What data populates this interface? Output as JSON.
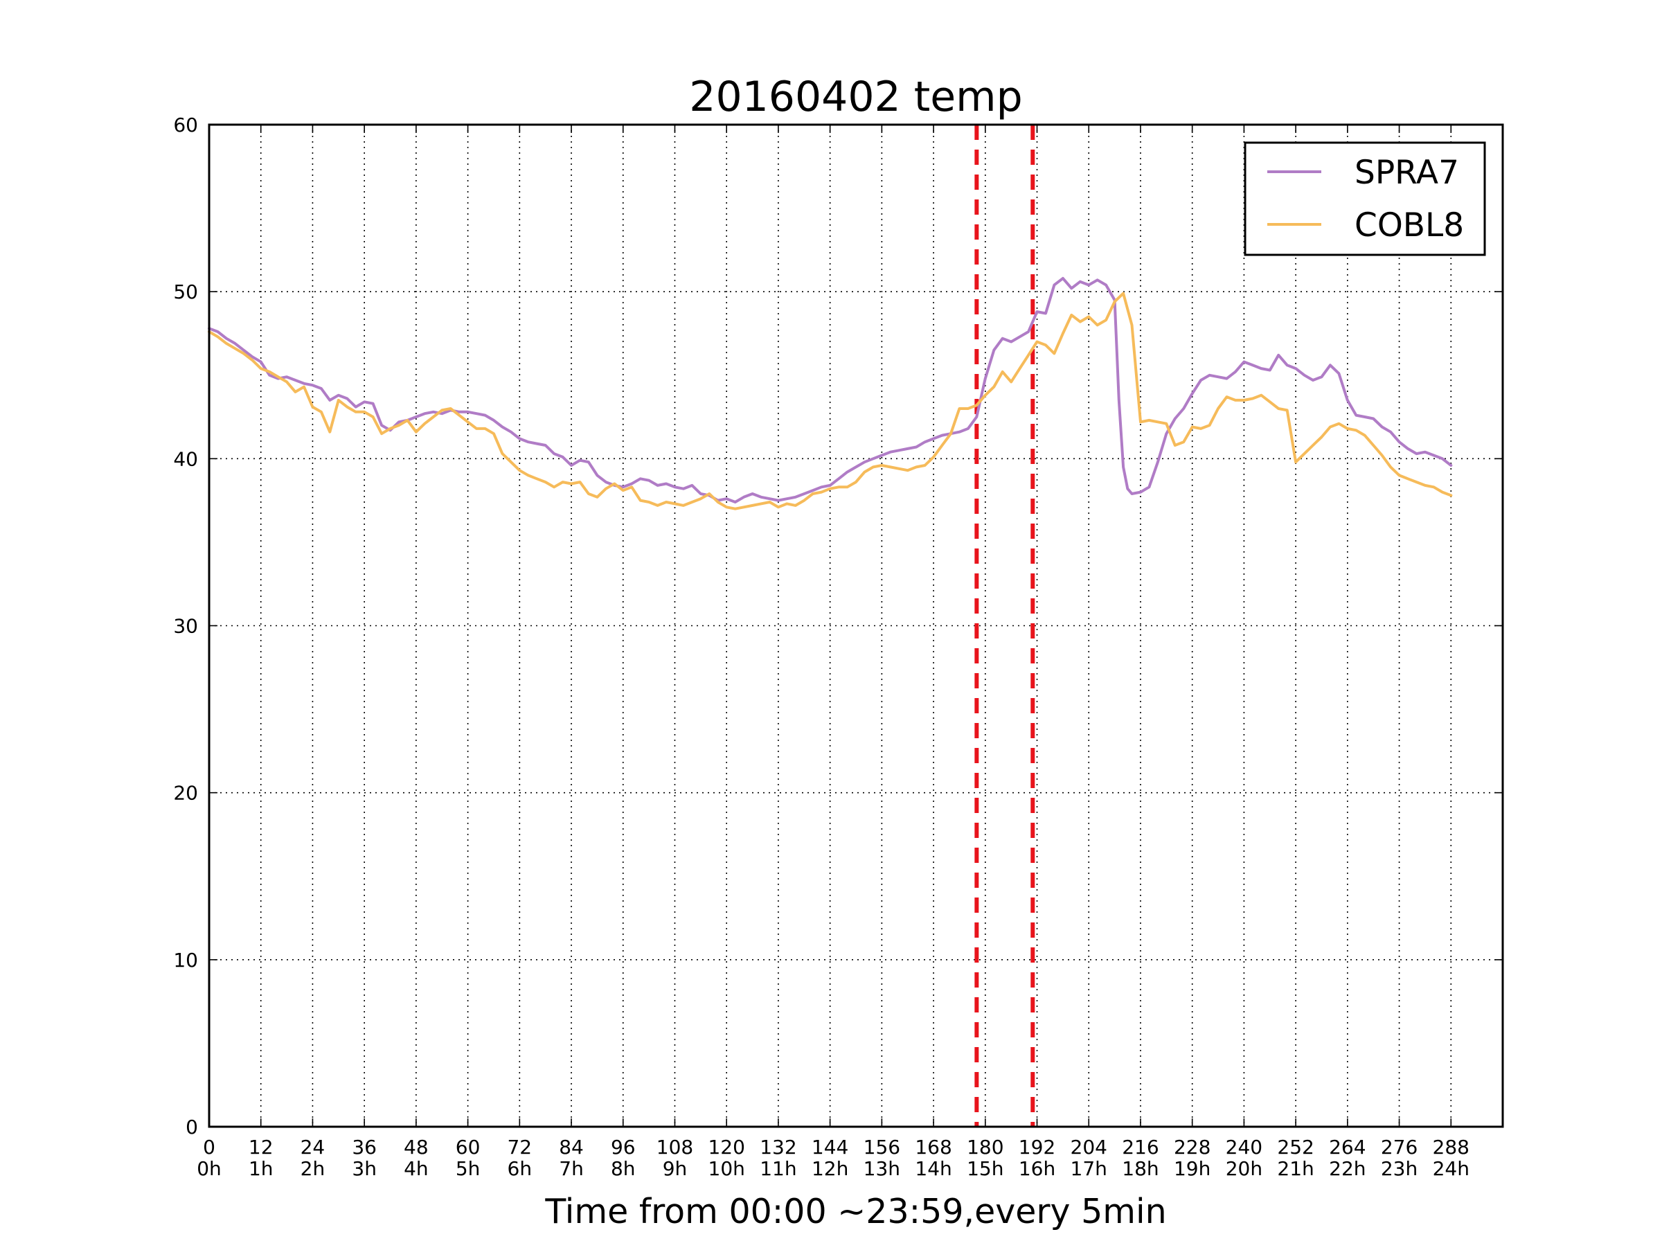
{
  "chart_data": {
    "type": "line",
    "title": "20160402 temp",
    "xlabel": "Time from 00:00 ~23:59,every 5min",
    "ylabel": "",
    "xlim": [
      0,
      300
    ],
    "ylim": [
      0,
      60
    ],
    "grid": true,
    "legend_position": "top-right",
    "x_ticks": [
      0,
      12,
      24,
      36,
      48,
      60,
      72,
      84,
      96,
      108,
      120,
      132,
      144,
      156,
      168,
      180,
      192,
      204,
      216,
      228,
      240,
      252,
      264,
      276,
      288
    ],
    "x_tick_labels": [
      "0",
      "12",
      "24",
      "36",
      "48",
      "60",
      "72",
      "84",
      "96",
      "108",
      "120",
      "132",
      "144",
      "156",
      "168",
      "180",
      "192",
      "204",
      "216",
      "228",
      "240",
      "252",
      "264",
      "276",
      "288"
    ],
    "x_tick_sublabels": [
      "0h",
      "1h",
      "2h",
      "3h",
      "4h",
      "5h",
      "6h",
      "7h",
      "8h",
      "9h",
      "10h",
      "11h",
      "12h",
      "13h",
      "14h",
      "15h",
      "16h",
      "17h",
      "18h",
      "19h",
      "20h",
      "21h",
      "22h",
      "23h",
      "24h"
    ],
    "y_ticks": [
      0,
      10,
      20,
      30,
      40,
      50,
      60
    ],
    "y_tick_labels": [
      "0",
      "10",
      "20",
      "30",
      "40",
      "50",
      "60"
    ],
    "vertical_lines": [
      {
        "x": 178,
        "color": "#e8141c",
        "style": "dashed"
      },
      {
        "x": 191,
        "color": "#e8141c",
        "style": "dashed"
      }
    ],
    "series": [
      {
        "name": "SPRA7",
        "color": "#b07cc6",
        "x": [
          0,
          2,
          4,
          6,
          8,
          10,
          12,
          14,
          16,
          18,
          20,
          22,
          24,
          26,
          28,
          30,
          32,
          34,
          36,
          38,
          40,
          42,
          44,
          46,
          48,
          50,
          52,
          54,
          56,
          58,
          60,
          62,
          64,
          66,
          68,
          70,
          72,
          74,
          76,
          78,
          80,
          82,
          84,
          86,
          88,
          90,
          92,
          94,
          96,
          98,
          100,
          102,
          104,
          106,
          108,
          110,
          112,
          114,
          116,
          118,
          120,
          122,
          124,
          126,
          128,
          130,
          132,
          134,
          136,
          138,
          140,
          142,
          144,
          146,
          148,
          150,
          152,
          154,
          156,
          158,
          160,
          162,
          164,
          166,
          168,
          170,
          172,
          174,
          176,
          178,
          180,
          182,
          184,
          186,
          188,
          190,
          192,
          194,
          196,
          198,
          200,
          202,
          204,
          206,
          208,
          210,
          211,
          212,
          213,
          214,
          216,
          218,
          220,
          222,
          224,
          226,
          228,
          230,
          232,
          234,
          236,
          238,
          240,
          242,
          244,
          246,
          248,
          250,
          252,
          254,
          256,
          258,
          260,
          262,
          264,
          266,
          268,
          270,
          272,
          274,
          276,
          278,
          280,
          282,
          284,
          286,
          288
        ],
        "y": [
          47.8,
          47.6,
          47.2,
          46.9,
          46.5,
          46.1,
          45.8,
          45.0,
          44.8,
          44.9,
          44.7,
          44.5,
          44.4,
          44.2,
          43.5,
          43.8,
          43.6,
          43.1,
          43.4,
          43.3,
          42.0,
          41.7,
          42.2,
          42.3,
          42.5,
          42.7,
          42.8,
          42.7,
          42.9,
          42.8,
          42.8,
          42.7,
          42.6,
          42.3,
          41.9,
          41.6,
          41.2,
          41.0,
          40.9,
          40.8,
          40.3,
          40.1,
          39.6,
          39.9,
          39.8,
          39.0,
          38.6,
          38.4,
          38.3,
          38.5,
          38.8,
          38.7,
          38.4,
          38.5,
          38.3,
          38.2,
          38.4,
          37.9,
          37.8,
          37.5,
          37.6,
          37.4,
          37.7,
          37.9,
          37.7,
          37.6,
          37.5,
          37.6,
          37.7,
          37.9,
          38.1,
          38.3,
          38.4,
          38.8,
          39.2,
          39.5,
          39.8,
          40.0,
          40.2,
          40.4,
          40.5,
          40.6,
          40.7,
          41.0,
          41.2,
          41.4,
          41.5,
          41.6,
          41.8,
          42.5,
          44.8,
          46.5,
          47.2,
          47.0,
          47.3,
          47.6,
          48.8,
          48.7,
          50.4,
          50.8,
          50.2,
          50.6,
          50.4,
          50.7,
          50.4,
          49.5,
          43.5,
          39.5,
          38.2,
          37.9,
          38.0,
          38.3,
          39.8,
          41.5,
          42.4,
          43.0,
          43.9,
          44.7,
          45.0,
          44.9,
          44.8,
          45.2,
          45.8,
          45.6,
          45.4,
          45.3,
          46.2,
          45.6,
          45.4,
          45.0,
          44.7,
          44.9,
          45.6,
          45.1,
          43.5,
          42.6,
          42.5,
          42.4,
          41.9,
          41.6,
          41.0,
          40.6,
          40.3,
          40.4,
          40.2,
          40.0,
          39.6
        ]
      },
      {
        "name": "COBL8",
        "color": "#f6bb5a",
        "x": [
          0,
          2,
          4,
          6,
          8,
          10,
          12,
          14,
          16,
          18,
          20,
          22,
          24,
          26,
          28,
          30,
          32,
          34,
          36,
          38,
          40,
          42,
          44,
          46,
          48,
          50,
          52,
          54,
          56,
          58,
          60,
          62,
          64,
          66,
          68,
          70,
          72,
          74,
          76,
          78,
          80,
          82,
          84,
          86,
          88,
          90,
          92,
          94,
          96,
          98,
          100,
          102,
          104,
          106,
          108,
          110,
          112,
          114,
          116,
          118,
          120,
          122,
          124,
          126,
          128,
          130,
          132,
          134,
          136,
          138,
          140,
          142,
          144,
          146,
          148,
          150,
          152,
          154,
          156,
          158,
          160,
          162,
          164,
          166,
          168,
          170,
          172,
          174,
          176,
          178,
          180,
          182,
          184,
          186,
          188,
          190,
          192,
          194,
          196,
          198,
          200,
          202,
          204,
          206,
          208,
          210,
          212,
          214,
          216,
          218,
          220,
          222,
          224,
          226,
          228,
          230,
          232,
          234,
          236,
          238,
          240,
          242,
          244,
          246,
          248,
          250,
          252,
          254,
          256,
          258,
          260,
          262,
          264,
          266,
          268,
          270,
          272,
          274,
          276,
          278,
          280,
          282,
          284,
          286,
          288
        ],
        "y": [
          47.6,
          47.3,
          46.9,
          46.6,
          46.3,
          45.9,
          45.4,
          45.2,
          44.9,
          44.6,
          44.0,
          44.3,
          43.1,
          42.8,
          41.6,
          43.5,
          43.1,
          42.8,
          42.8,
          42.5,
          41.5,
          41.8,
          42.0,
          42.3,
          41.6,
          42.1,
          42.5,
          42.9,
          43.0,
          42.6,
          42.2,
          41.8,
          41.8,
          41.5,
          40.3,
          39.8,
          39.3,
          39.0,
          38.8,
          38.6,
          38.3,
          38.6,
          38.5,
          38.6,
          37.9,
          37.7,
          38.2,
          38.5,
          38.1,
          38.3,
          37.5,
          37.4,
          37.2,
          37.4,
          37.3,
          37.2,
          37.4,
          37.6,
          37.9,
          37.4,
          37.1,
          37.0,
          37.1,
          37.2,
          37.3,
          37.4,
          37.1,
          37.3,
          37.2,
          37.5,
          37.9,
          38.0,
          38.2,
          38.3,
          38.3,
          38.6,
          39.2,
          39.5,
          39.6,
          39.5,
          39.4,
          39.3,
          39.5,
          39.6,
          40.1,
          40.8,
          41.5,
          43.0,
          43.0,
          43.2,
          43.8,
          44.3,
          45.2,
          44.6,
          45.4,
          46.2,
          47.0,
          46.8,
          46.3,
          47.5,
          48.6,
          48.2,
          48.5,
          48.0,
          48.3,
          49.4,
          49.9,
          48.0,
          42.2,
          42.3,
          42.2,
          42.1,
          40.8,
          41.0,
          41.9,
          41.8,
          42.0,
          43.0,
          43.7,
          43.5,
          43.5,
          43.6,
          43.8,
          43.4,
          43.0,
          42.9,
          39.8,
          40.3,
          40.8,
          41.3,
          41.9,
          42.1,
          41.8,
          41.7,
          41.4,
          40.8,
          40.2,
          39.5,
          39.0,
          38.8,
          38.6,
          38.4,
          38.3,
          38.0,
          37.8
        ]
      }
    ]
  }
}
